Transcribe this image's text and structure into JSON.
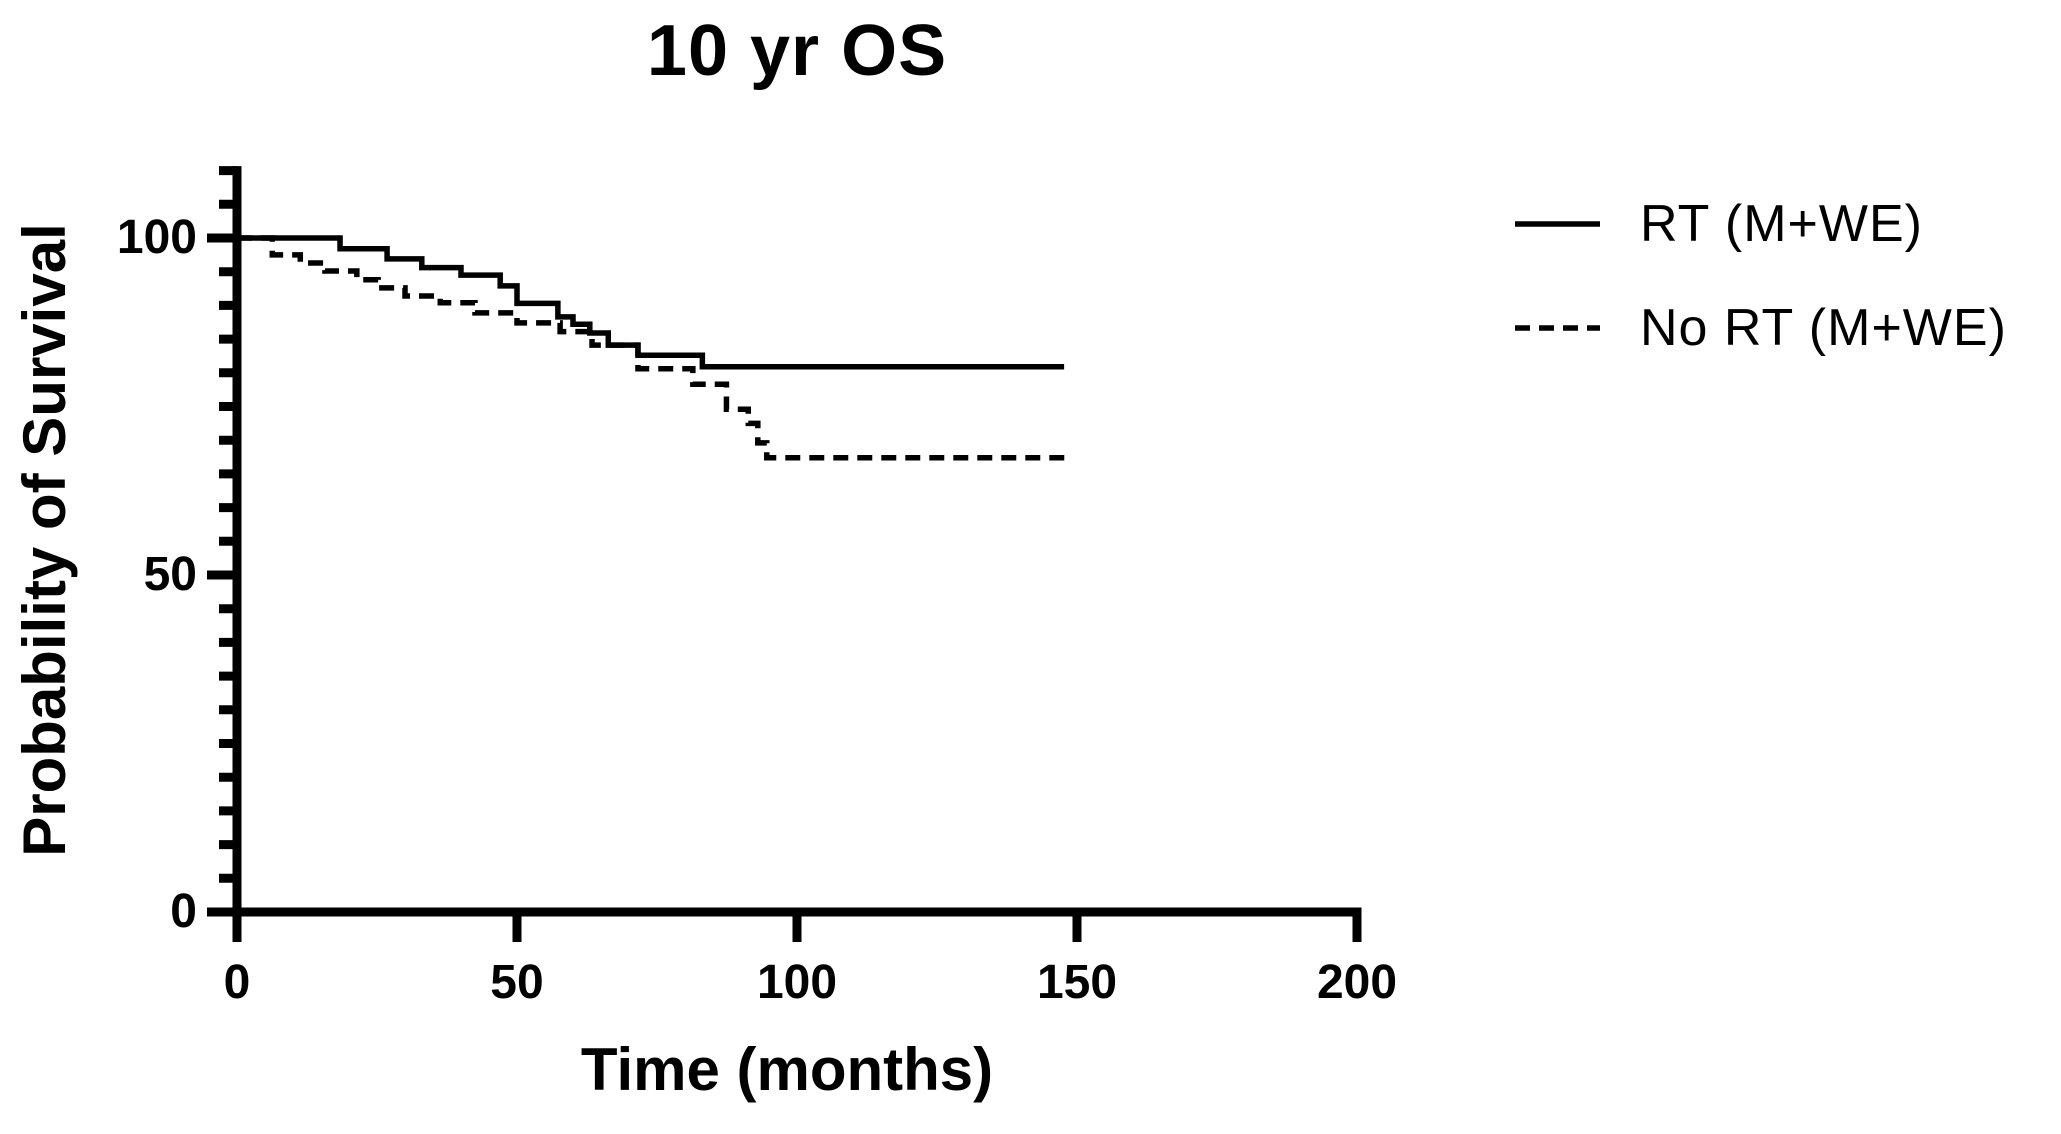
{
  "figure": {
    "background_color": "#ffffff",
    "foreground_color": "#000000"
  },
  "chart_data": {
    "type": "line",
    "chart_kind": "kaplan_meier_step",
    "title": "10 yr OS",
    "xlabel": "Time (months)",
    "ylabel": "Probability of Survival",
    "xlim": [
      0,
      200
    ],
    "ylim": [
      0,
      100
    ],
    "y_axis_drawn_to": 110,
    "grid": false,
    "legend_position": "right-of-plot",
    "x_ticks": [
      {
        "value": 0,
        "label": "0"
      },
      {
        "value": 50,
        "label": "50"
      },
      {
        "value": 100,
        "label": "100"
      },
      {
        "value": 150,
        "label": "150"
      },
      {
        "value": 200,
        "label": "200"
      }
    ],
    "y_ticks": [
      {
        "value": 0,
        "label": "0"
      },
      {
        "value": 50,
        "label": "50"
      },
      {
        "value": 100,
        "label": "100"
      }
    ],
    "y_minor_tick_step": 5,
    "series": [
      {
        "name": "RT (M+WE)",
        "line_style": "solid",
        "color": "#000000",
        "start": [
          0,
          100
        ],
        "drops": [
          [
            18.4,
            98.4
          ],
          [
            26.8,
            96.9
          ],
          [
            33,
            95.6
          ],
          [
            40,
            94.5
          ],
          [
            47,
            92.9
          ],
          [
            50,
            90.3
          ],
          [
            57.3,
            88.3
          ],
          [
            60,
            87.2
          ],
          [
            63,
            85.9
          ],
          [
            66.3,
            84.1
          ],
          [
            71.6,
            82.6
          ],
          [
            83.1,
            80.9
          ]
        ],
        "end_month": 147.7,
        "final_value": 80.9
      },
      {
        "name": "No RT (M+WE)",
        "line_style": "dashed",
        "color": "#000000",
        "start": [
          0,
          100
        ],
        "drops": [
          [
            6.3,
            97.5
          ],
          [
            11.3,
            96.3
          ],
          [
            15.7,
            95.1
          ],
          [
            21.4,
            93.8
          ],
          [
            25.2,
            92.6
          ],
          [
            30,
            91.4
          ],
          [
            36.3,
            90.4
          ],
          [
            42.5,
            88.9
          ],
          [
            50,
            87.4
          ],
          [
            57.7,
            86.1
          ],
          [
            63.4,
            84.1
          ],
          [
            71.6,
            80.6
          ],
          [
            81.4,
            78.3
          ],
          [
            87.4,
            74.6
          ],
          [
            91.3,
            72.5
          ],
          [
            93,
            69.6
          ],
          [
            94.6,
            67.4
          ]
        ],
        "end_month": 148.6,
        "final_value": 67.4
      }
    ]
  }
}
